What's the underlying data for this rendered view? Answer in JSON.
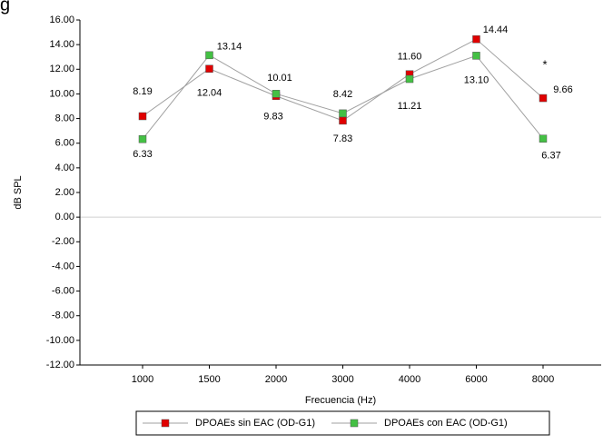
{
  "chart_data": {
    "type": "line",
    "title": "g",
    "x_label": "Frecuencia (Hz)",
    "y_label": "dB SPL",
    "categories": [
      "1000",
      "1500",
      "2000",
      "3000",
      "4000",
      "6000",
      "8000"
    ],
    "series": [
      {
        "name": "DPOAEs sin EAC (OD-G1)",
        "color": "#e00000",
        "values": [
          8.19,
          12.04,
          9.83,
          7.83,
          11.6,
          14.44,
          9.66
        ],
        "value_labels": [
          "8.19",
          "12.04",
          "9.83",
          "7.83",
          "11.60",
          "14.44",
          "9.66"
        ]
      },
      {
        "name": "DPOAEs con EAC (OD-G1)",
        "color": "#44c044",
        "values": [
          6.33,
          13.14,
          10.01,
          8.42,
          11.21,
          13.1,
          6.37
        ],
        "value_labels": [
          "6.33",
          "13.14",
          "10.01",
          "8.42",
          "11.21",
          "13.10",
          "6.37"
        ]
      }
    ],
    "annotations": [
      "*"
    ],
    "ylim": [
      -12,
      16
    ],
    "yticks": [
      {
        "value": -12,
        "label": "-12.00"
      },
      {
        "value": -10,
        "label": "-10.00"
      },
      {
        "value": -8,
        "label": "-8.00"
      },
      {
        "value": -6,
        "label": "-6.00"
      },
      {
        "value": -4,
        "label": "-4.00"
      },
      {
        "value": -2,
        "label": "-2.00"
      },
      {
        "value": 0,
        "label": "0.00"
      },
      {
        "value": 2,
        "label": "2.00"
      },
      {
        "value": 4,
        "label": "4.00"
      },
      {
        "value": 6,
        "label": "6.00"
      },
      {
        "value": 8,
        "label": "8.00"
      },
      {
        "value": 10,
        "label": "10.00"
      },
      {
        "value": 12,
        "label": "12.00"
      },
      {
        "value": 14,
        "label": "14.00"
      },
      {
        "value": 16,
        "label": "16.00"
      }
    ],
    "zero_line": true,
    "line_color": "#a0a0a0",
    "legend": "bottom"
  }
}
